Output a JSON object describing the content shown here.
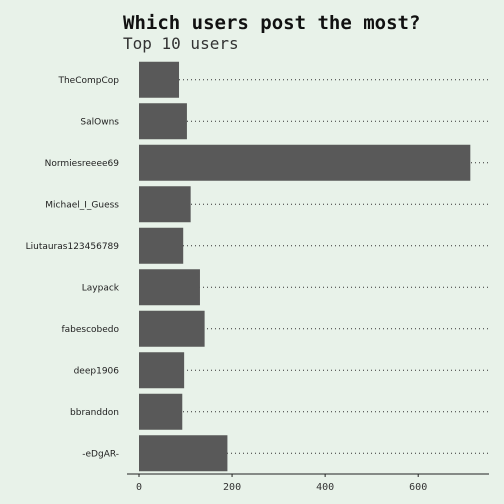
{
  "chart_data": {
    "type": "bar",
    "orientation": "horizontal",
    "title": "Which users post the most?",
    "subtitle": "Top 10 users",
    "categories": [
      "TheCompCop",
      "SalOwns",
      "Normiesreeee69",
      "Michael_I_Guess",
      "Liutauras123456789",
      "Laypack",
      "fabescobedo",
      "deep1906",
      "bbranddon",
      "-eDgAR-"
    ],
    "values": [
      86,
      103,
      712,
      111,
      95,
      131,
      141,
      97,
      93,
      190
    ],
    "xlabel": "",
    "ylabel": "",
    "xlim": [
      0,
      750
    ],
    "xticks": [
      0,
      200,
      400,
      600
    ],
    "bar_color": "#595959",
    "grid": "dotted horizontal lines per category"
  }
}
